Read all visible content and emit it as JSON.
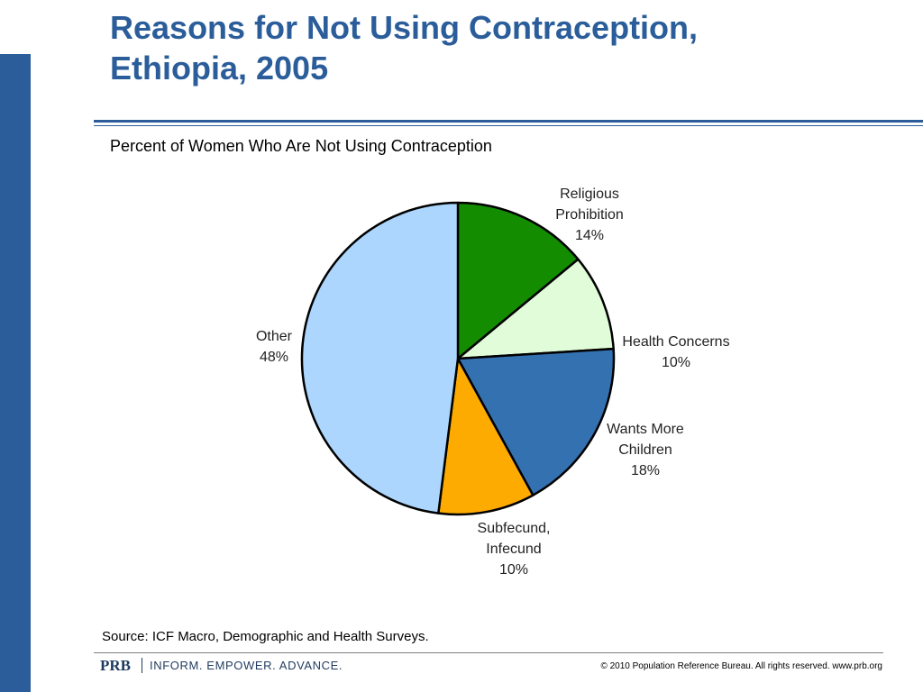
{
  "slide": {
    "title_line1": "Reasons for Not Using Contraception,",
    "title_line2": "Ethiopia, 2005",
    "subtitle": "Percent of Women Who Are Not Using Contraception",
    "source": "Source: ICF Macro, Demographic and Health Surveys.",
    "accent_color": "#2a5d9a"
  },
  "footer": {
    "logo": "PRB",
    "tagline": "INFORM. EMPOWER. ADVANCE.",
    "copyright": "© 2010 Population Reference Bureau. All rights reserved. www.prb.org"
  },
  "chart_data": {
    "type": "pie",
    "start_angle_deg": 0,
    "direction": "clockwise",
    "slices": [
      {
        "name": "Religious Prohibition",
        "label_lines": [
          "Religious",
          "Prohibition",
          "14%"
        ],
        "value": 14,
        "color": "#138c00"
      },
      {
        "name": "Health Concerns",
        "label_lines": [
          "Health Concerns",
          "10%"
        ],
        "value": 10,
        "color": "#e0fcd9"
      },
      {
        "name": "Wants More Children",
        "label_lines": [
          "Wants More",
          "Children",
          "18%"
        ],
        "value": 18,
        "color": "#3471b0"
      },
      {
        "name": "Subfecund, Infecund",
        "label_lines": [
          "Subfecund,",
          "Infecund",
          "10%"
        ],
        "value": 10,
        "color": "#fdab00"
      },
      {
        "name": "Other",
        "label_lines": [
          "Other",
          "48%"
        ],
        "value": 48,
        "color": "#acd6fd"
      }
    ]
  }
}
